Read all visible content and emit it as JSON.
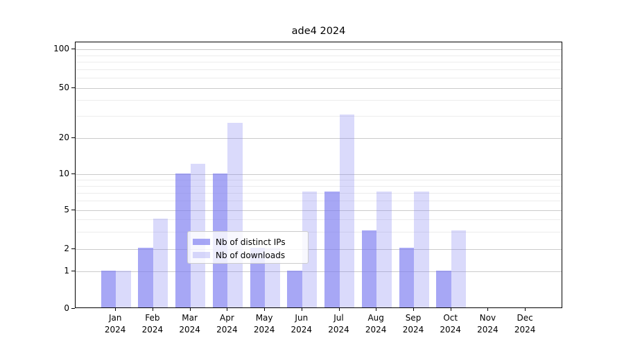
{
  "chart_data": {
    "type": "bar",
    "title": "ade4 2024",
    "categories": [
      "Jan 2024",
      "Feb 2024",
      "Mar 2024",
      "Apr 2024",
      "May 2024",
      "Jun 2024",
      "Jul 2024",
      "Aug 2024",
      "Sep 2024",
      "Oct 2024",
      "Nov 2024",
      "Dec 2024"
    ],
    "month_labels": [
      "Jan",
      "Feb",
      "Mar",
      "Apr",
      "May",
      "Jun",
      "Jul",
      "Aug",
      "Sep",
      "Oct",
      "Nov",
      "Dec"
    ],
    "year_label": "2024",
    "series": [
      {
        "name": "Nb of distinct IPs",
        "color": "rgba(122,122,240,0.66)",
        "values": [
          1,
          2,
          10,
          10,
          2,
          1,
          7,
          3,
          2,
          1,
          0,
          0
        ]
      },
      {
        "name": "Nb of downloads",
        "color": "rgba(122,122,240,0.28)",
        "values": [
          1,
          4,
          12,
          26,
          2,
          7,
          30,
          7,
          7,
          3,
          0,
          0
        ]
      }
    ],
    "yticks": [
      0,
      1,
      2,
      5,
      10,
      20,
      50,
      100
    ],
    "ylim": [
      0,
      100
    ],
    "yscale": "log-with-zero-baseline",
    "grid": true,
    "legend_position": "inside plot, lower center-right",
    "accent_color": "#7a7af0"
  }
}
